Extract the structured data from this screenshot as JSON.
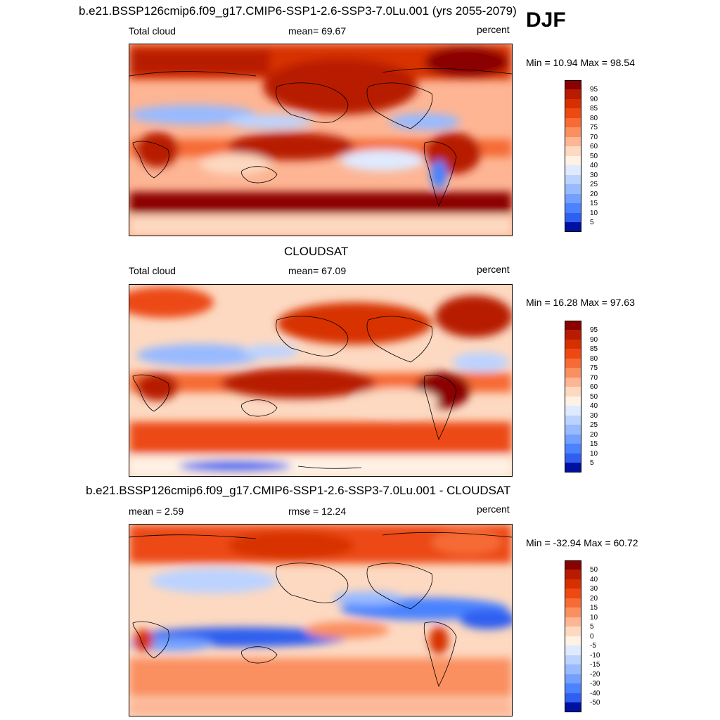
{
  "djf_label": "DJF",
  "panels": [
    {
      "title": "b.e21.BSSP126cmip6.f09_g17.CMIP6-SSP1-2.6-SSP3-7.0Lu.001 (yrs 2055-2079)",
      "left_label": "Total cloud",
      "center_label": "mean=  69.67",
      "right_label": "percent",
      "minmax": "Min =  10.94 Max =  98.54",
      "legend_labels": [
        "95",
        "90",
        "85",
        "80",
        "75",
        "70",
        "60",
        "50",
        "40",
        "30",
        "25",
        "20",
        "15",
        "10",
        "5"
      ],
      "legend_colors": [
        "#8b0000",
        "#b81c00",
        "#d73000",
        "#ec4a12",
        "#f66b36",
        "#fa8f60",
        "#fdb594",
        "#fdd9c1",
        "#fff2e5",
        "#dfeaff",
        "#bcd3ff",
        "#98baff",
        "#73a0ff",
        "#4a82ff",
        "#2f5ff0",
        "#1438e0",
        "#0010a0"
      ]
    },
    {
      "title": "CLOUDSAT",
      "left_label": "Total cloud",
      "center_label": "mean=  67.09",
      "right_label": "percent",
      "minmax": "Min =  16.28 Max =  97.63",
      "legend_labels": [
        "95",
        "90",
        "85",
        "80",
        "75",
        "70",
        "60",
        "50",
        "40",
        "30",
        "25",
        "20",
        "15",
        "10",
        "5"
      ],
      "legend_colors": [
        "#8b0000",
        "#b81c00",
        "#d73000",
        "#ec4a12",
        "#f66b36",
        "#fa8f60",
        "#fdb594",
        "#fdd9c1",
        "#fff2e5",
        "#dfeaff",
        "#bcd3ff",
        "#98baff",
        "#73a0ff",
        "#4a82ff",
        "#2f5ff0",
        "#1438e0",
        "#0010a0"
      ]
    },
    {
      "title": "b.e21.BSSP126cmip6.f09_g17.CMIP6-SSP1-2.6-SSP3-7.0Lu.001 - CLOUDSAT",
      "left_label": "mean =   2.59",
      "center_label": "rmse =  12.24",
      "right_label": "percent",
      "minmax": "Min = -32.94 Max =  60.72",
      "legend_labels": [
        "50",
        "40",
        "30",
        "20",
        "15",
        "10",
        "5",
        "0",
        "-5",
        "-10",
        "-15",
        "-20",
        "-30",
        "-40",
        "-50"
      ],
      "legend_colors": [
        "#8b0000",
        "#b81c00",
        "#d73000",
        "#ec4a12",
        "#f66b36",
        "#fa8f60",
        "#fdb594",
        "#fdd9c1",
        "#fff2e5",
        "#dfeaff",
        "#bcd3ff",
        "#98baff",
        "#73a0ff",
        "#4a82ff",
        "#2f5ff0",
        "#1438e0",
        "#0010a0"
      ]
    }
  ]
}
